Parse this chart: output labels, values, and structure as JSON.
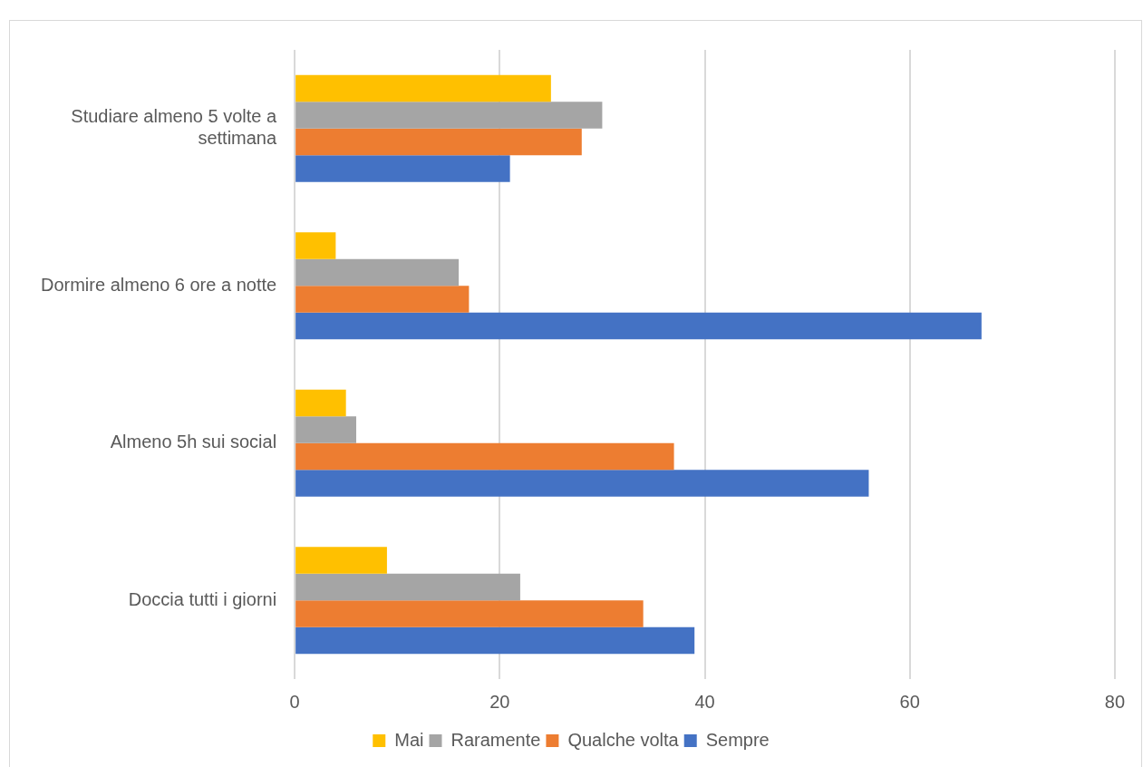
{
  "chart_data": {
    "type": "bar",
    "orientation": "horizontal",
    "categories": [
      "Studiare almeno 5 volte a settimana",
      "Dormire almeno 6 ore a notte",
      "Almeno 5h sui social",
      "Doccia tutti i giorni"
    ],
    "series": [
      {
        "name": "Mai",
        "color": "#ffc000",
        "values": [
          25,
          4,
          5,
          9
        ]
      },
      {
        "name": "Raramente",
        "color": "#a5a5a5",
        "values": [
          30,
          16,
          6,
          22
        ]
      },
      {
        "name": "Qualche volta",
        "color": "#ed7d31",
        "values": [
          28,
          17,
          37,
          34
        ]
      },
      {
        "name": "Sempre",
        "color": "#4472c4",
        "values": [
          21,
          67,
          56,
          39
        ]
      }
    ],
    "xlim": [
      0,
      80
    ],
    "xticks": [
      0,
      20,
      40,
      60,
      80
    ],
    "grid": "x",
    "legend": "bottom"
  }
}
